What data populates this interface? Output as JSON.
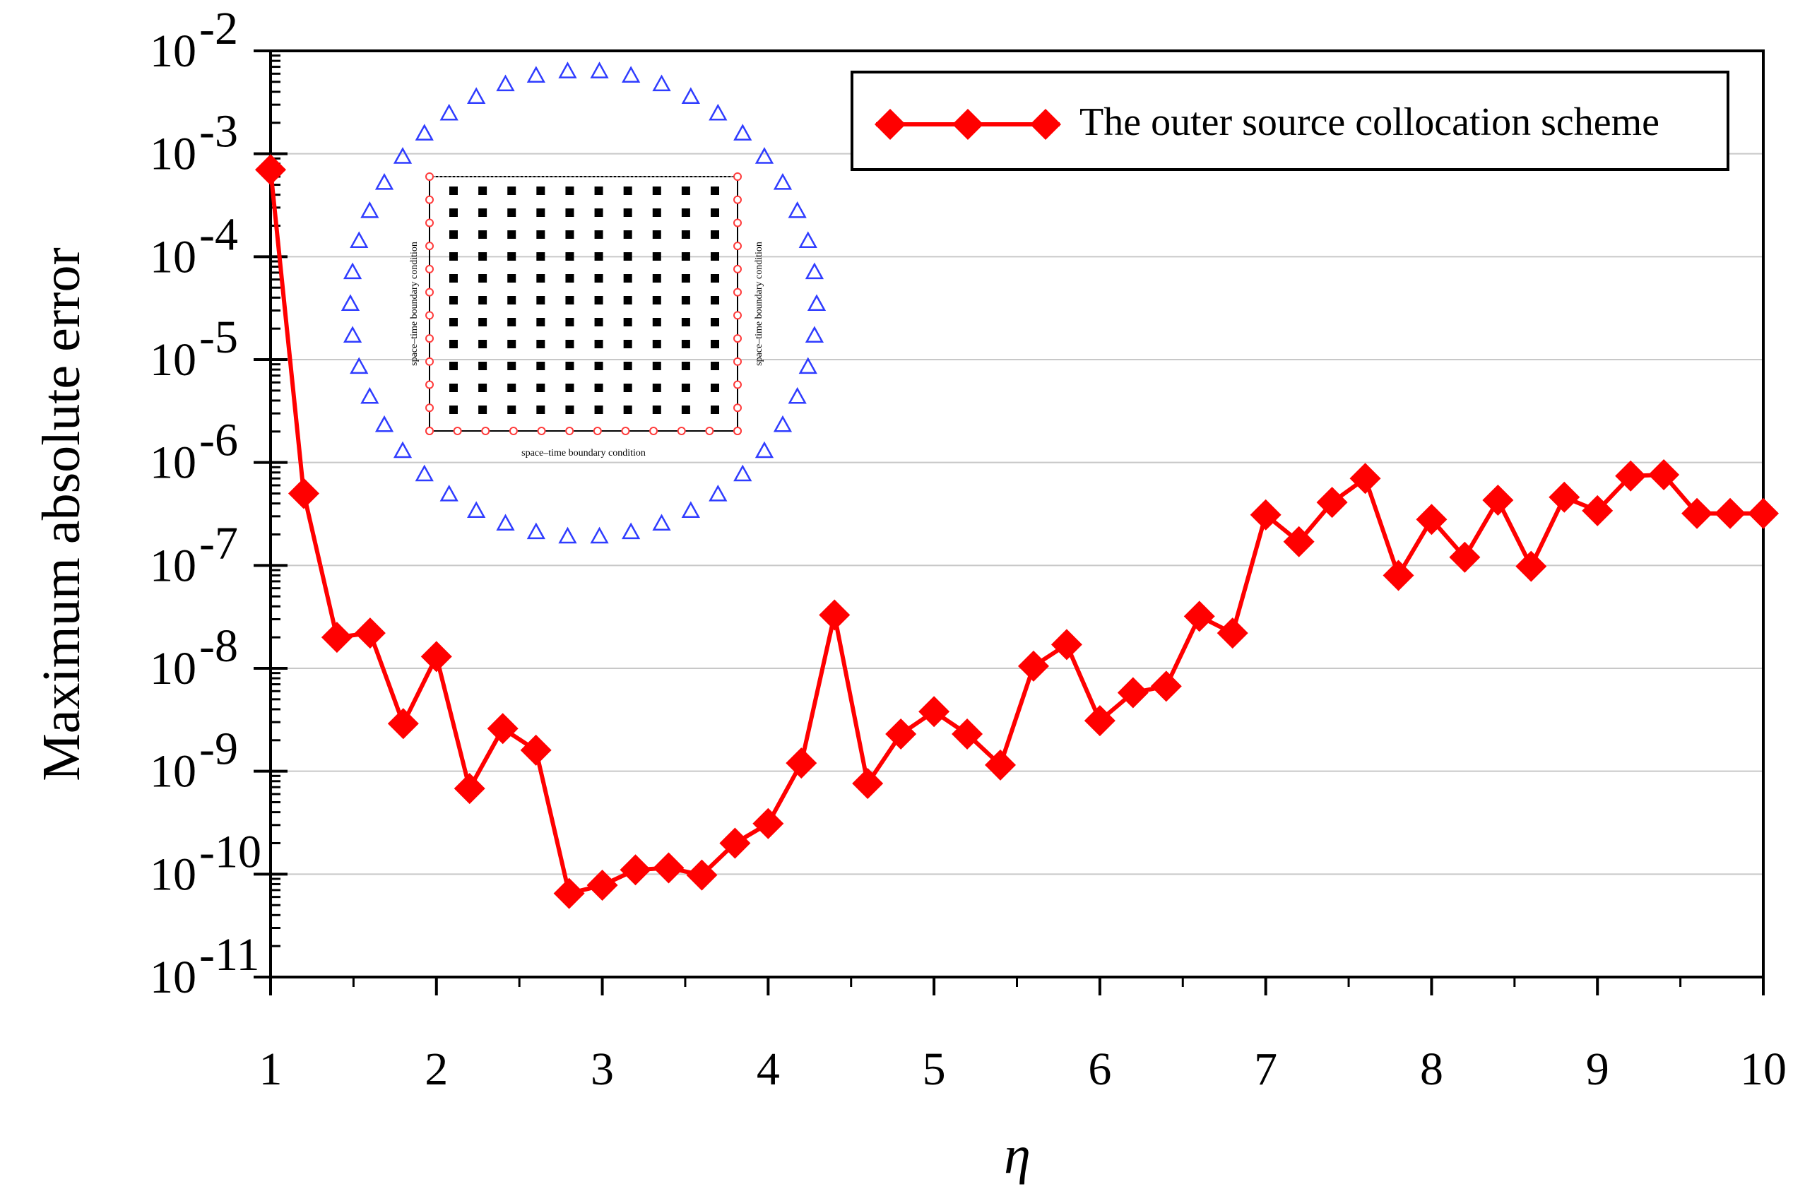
{
  "chart_data": {
    "type": "line",
    "title": "",
    "xlabel": "η",
    "ylabel": "Maximum absolute error",
    "yscale": "log",
    "xlim": [
      1,
      10
    ],
    "ylim_exponents": [
      -11,
      -2
    ],
    "grid": "horizontal",
    "legend_position": "top-right",
    "x_ticks": [
      "1",
      "2",
      "3",
      "4",
      "5",
      "6",
      "7",
      "8",
      "9",
      "10"
    ],
    "y_ticks": [
      {
        "base": "10",
        "exp": "-11"
      },
      {
        "base": "10",
        "exp": "-10"
      },
      {
        "base": "10",
        "exp": "-9"
      },
      {
        "base": "10",
        "exp": "-8"
      },
      {
        "base": "10",
        "exp": "-7"
      },
      {
        "base": "10",
        "exp": "-6"
      },
      {
        "base": "10",
        "exp": "-5"
      },
      {
        "base": "10",
        "exp": "-4"
      },
      {
        "base": "10",
        "exp": "-3"
      },
      {
        "base": "10",
        "exp": "-2"
      }
    ],
    "series": [
      {
        "name": "The outer source collocation scheme",
        "color": "#ff0000",
        "marker": "diamond",
        "x": [
          1.0,
          1.2,
          1.4,
          1.6,
          1.8,
          2.0,
          2.2,
          2.4,
          2.6,
          2.8,
          3.0,
          3.2,
          3.4,
          3.6,
          3.8,
          4.0,
          4.2,
          4.4,
          4.6,
          4.8,
          5.0,
          5.2,
          5.4,
          5.6,
          5.8,
          6.0,
          6.2,
          6.4,
          6.6,
          6.8,
          7.0,
          7.2,
          7.4,
          7.6,
          7.8,
          8.0,
          8.2,
          8.4,
          8.6,
          8.8,
          9.0,
          9.2,
          9.4,
          9.6,
          9.8,
          10.0
        ],
        "y": [
          0.0007,
          5e-07,
          2e-08,
          2.2e-08,
          2.9e-09,
          1.3e-08,
          6.8e-10,
          2.6e-09,
          1.6e-09,
          6.5e-11,
          7.8e-11,
          1.1e-10,
          1.15e-10,
          9.8e-11,
          2e-10,
          3.1e-10,
          1.2e-09,
          3.3e-08,
          7.6e-10,
          2.3e-09,
          3.8e-09,
          2.3e-09,
          1.15e-09,
          1.05e-08,
          1.7e-08,
          3.1e-09,
          5.8e-09,
          6.7e-09,
          3.2e-08,
          2.2e-08,
          3.1e-07,
          1.7e-07,
          4.1e-07,
          7e-07,
          8e-08,
          2.8e-07,
          1.2e-07,
          4.3e-07,
          9.8e-08,
          4.6e-07,
          3.4e-07,
          7.4e-07,
          7.6e-07,
          3.2e-07,
          3.2e-07,
          3.2e-07
        ]
      }
    ],
    "inset": {
      "boundary_label": "space–time boundary condition",
      "source_marker_color": "#2f3cff",
      "boundary_marker_color": "#ff3b3b",
      "interior_marker_color": "#000000",
      "source_point_count": 46,
      "boundary_points_per_side": 12,
      "interior_grid": [
        10,
        11
      ]
    }
  }
}
